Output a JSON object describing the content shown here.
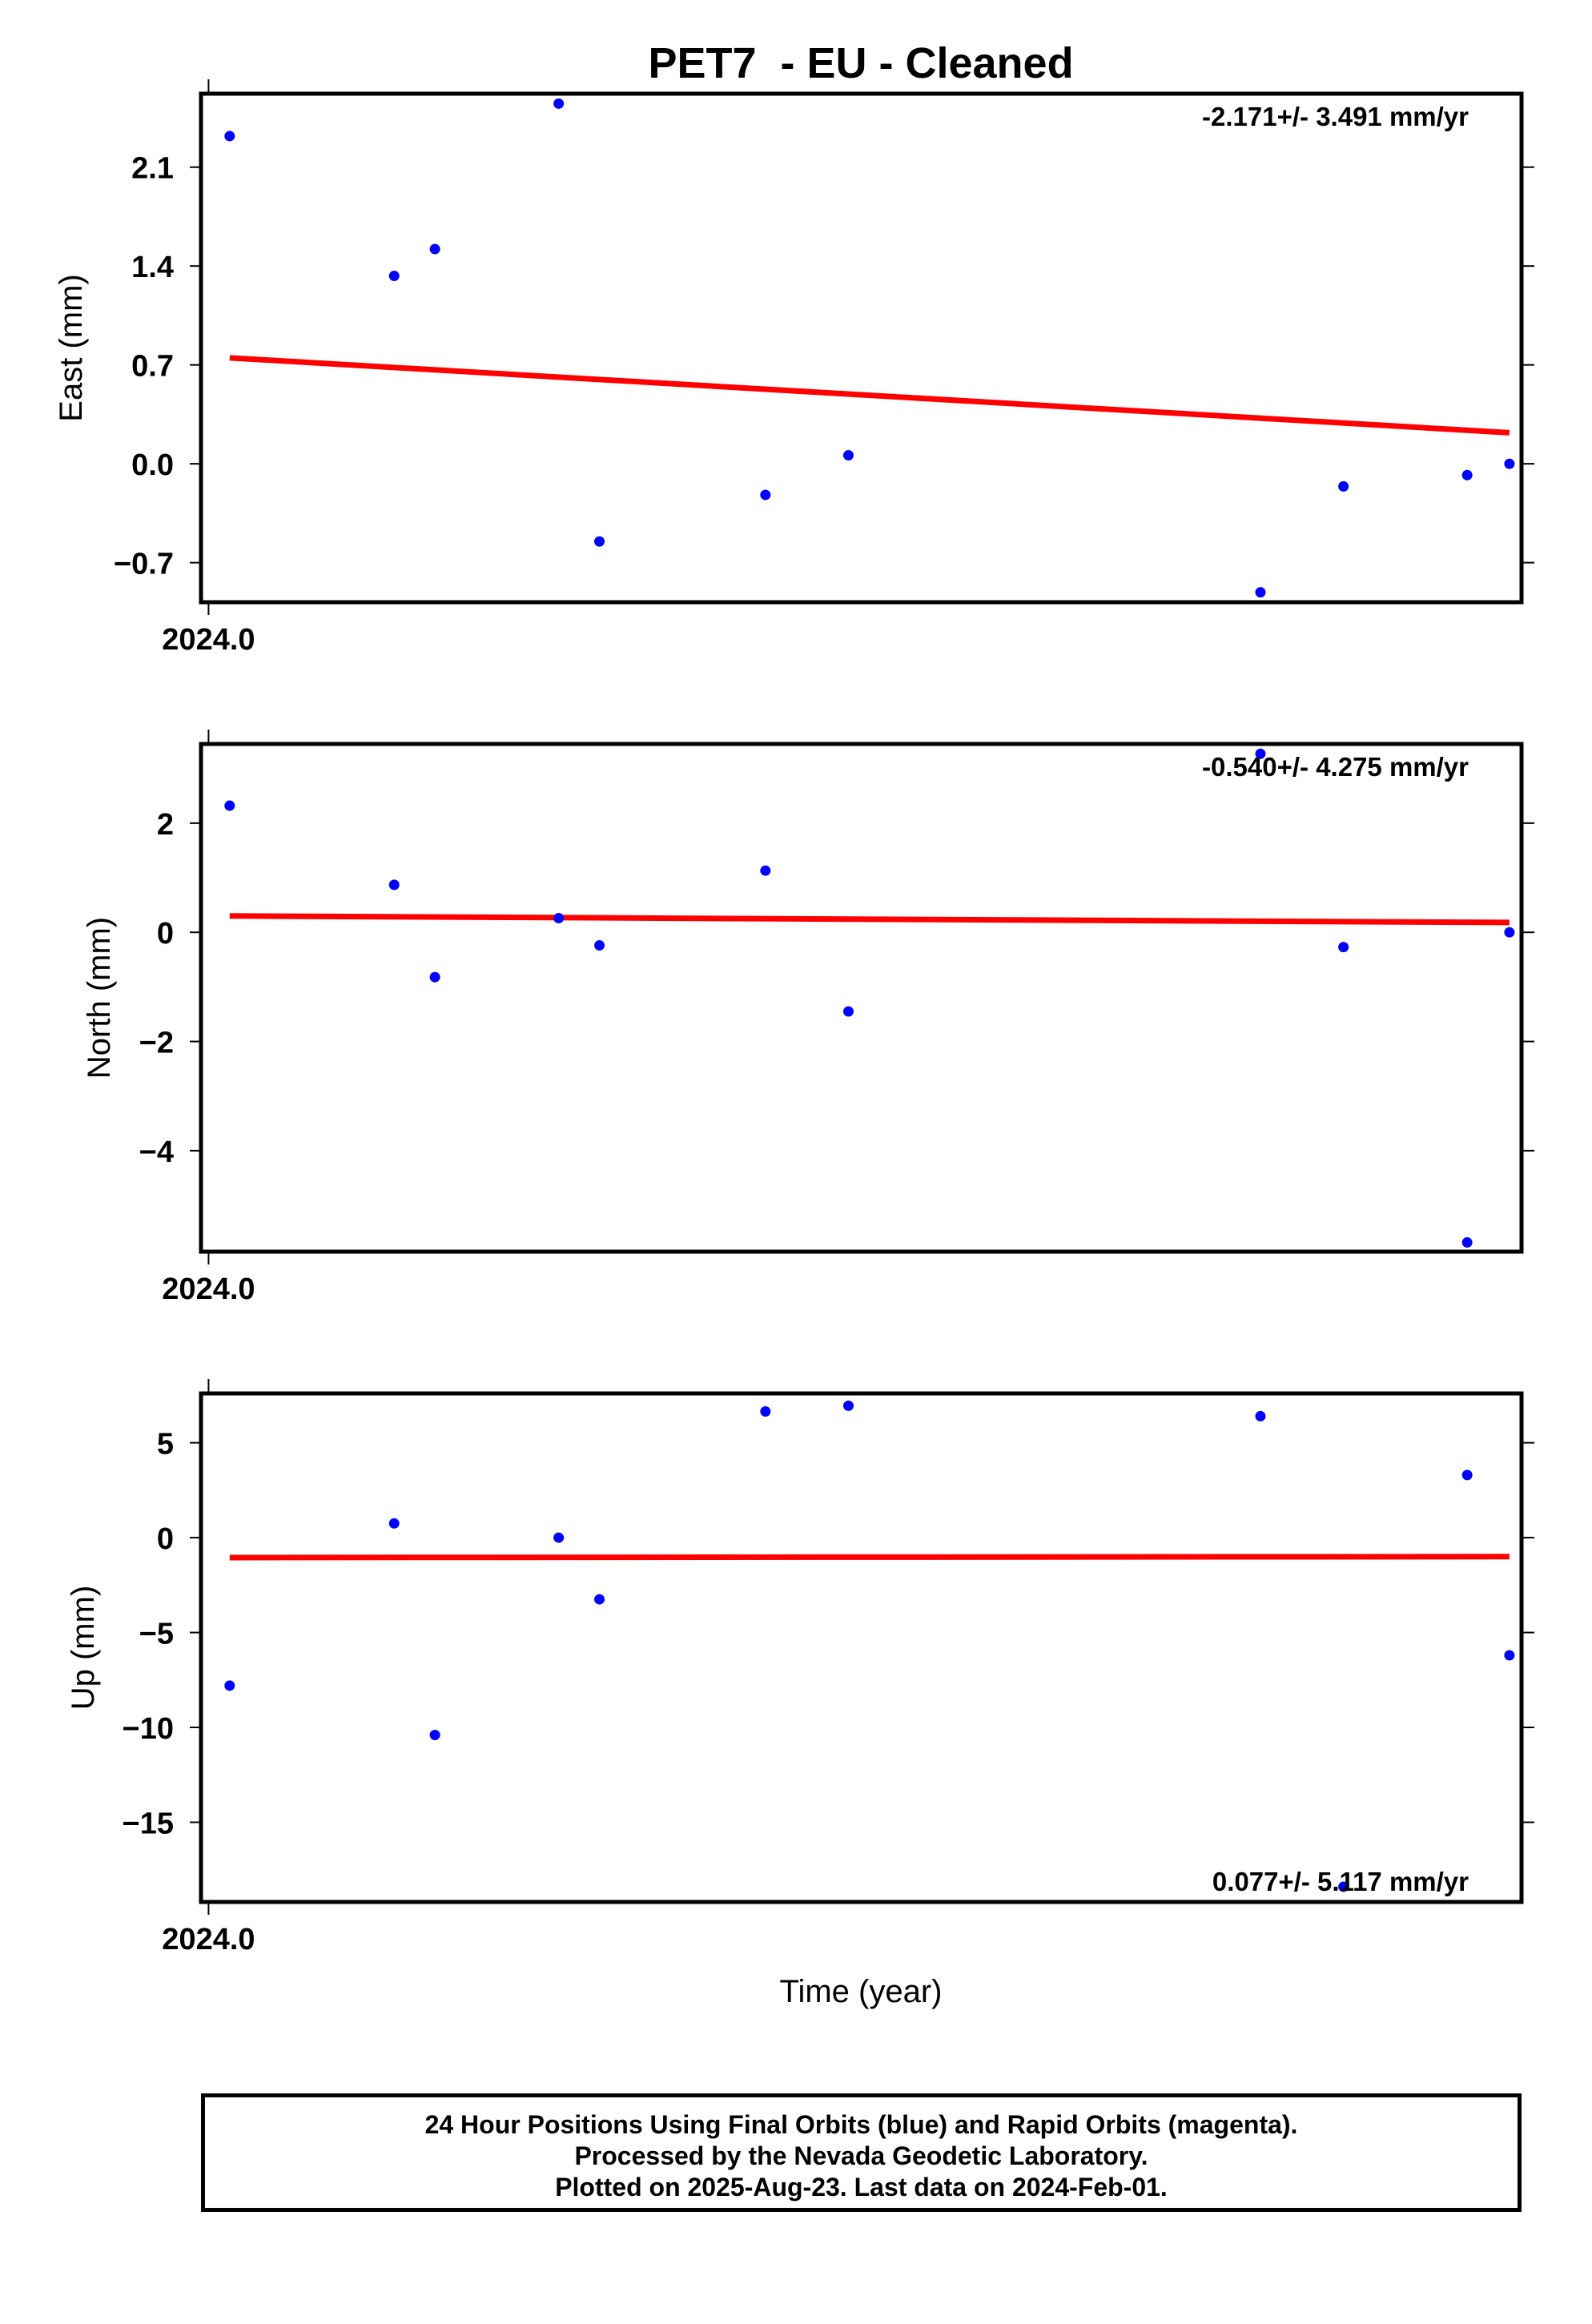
{
  "title": "PET7  - EU - Cleaned",
  "xlabel": "Time (year)",
  "footer": [
    "24 Hour Positions Using Final Orbits (blue) and Rapid Orbits (magenta).",
    "Processed by the Nevada Geodetic Laboratory.",
    "Plotted on 2025-Aug-23. Last data on 2024-Feb-01."
  ],
  "colors": {
    "points": "#0000ff",
    "trend": "#ff0000",
    "frame": "#000000"
  },
  "chart_data": [
    {
      "type": "scatter",
      "ylabel": "East (mm)",
      "rate": "-2.171+/- 3.491 mm/yr",
      "xlim": [
        2023.9995,
        2024.087
      ],
      "ylim": [
        -0.98,
        2.62
      ],
      "yticks": [
        {
          "value": 2.1,
          "label": "2.1"
        },
        {
          "value": 1.4,
          "label": "1.4"
        },
        {
          "value": 0.7,
          "label": "0.7"
        },
        {
          "value": 0.0,
          "label": "0.0"
        },
        {
          "value": -0.7,
          "label": "−0.7"
        }
      ],
      "xticks": [
        {
          "value": 2024.0,
          "label": "2024.0"
        }
      ],
      "points": [
        [
          2024.0014,
          2.32
        ],
        [
          2024.0123,
          1.33
        ],
        [
          2024.015,
          1.52
        ],
        [
          2024.0232,
          2.55
        ],
        [
          2024.0259,
          -0.55
        ],
        [
          2024.0369,
          -0.22
        ],
        [
          2024.0424,
          0.06
        ],
        [
          2024.0697,
          -0.91
        ],
        [
          2024.0752,
          -0.16
        ],
        [
          2024.0834,
          -0.08
        ],
        [
          2024.0862,
          0.0
        ]
      ],
      "trend": [
        [
          2024.0014,
          0.75
        ],
        [
          2024.0862,
          0.22
        ]
      ]
    },
    {
      "type": "scatter",
      "ylabel": "North (mm)",
      "rate": "-0.540+/- 4.275 mm/yr",
      "xlim": [
        2023.9995,
        2024.087
      ],
      "ylim": [
        -5.85,
        3.45
      ],
      "yticks": [
        {
          "value": 2,
          "label": "2"
        },
        {
          "value": 0,
          "label": "0"
        },
        {
          "value": -2,
          "label": "−2"
        },
        {
          "value": -4,
          "label": "−4"
        }
      ],
      "xticks": [
        {
          "value": 2024.0,
          "label": "2024.0"
        }
      ],
      "points": [
        [
          2024.0014,
          2.32
        ],
        [
          2024.0123,
          0.87
        ],
        [
          2024.015,
          -0.82
        ],
        [
          2024.0232,
          0.26
        ],
        [
          2024.0259,
          -0.24
        ],
        [
          2024.0369,
          1.13
        ],
        [
          2024.0424,
          -1.45
        ],
        [
          2024.0697,
          3.27
        ],
        [
          2024.0752,
          -0.27
        ],
        [
          2024.0834,
          -5.68
        ],
        [
          2024.0862,
          0.0
        ]
      ],
      "trend": [
        [
          2024.0014,
          0.3
        ],
        [
          2024.0862,
          0.18
        ]
      ]
    },
    {
      "type": "scatter",
      "ylabel": "Up (mm)",
      "rate": "0.077+/- 5.117 mm/yr",
      "xlim": [
        2023.9995,
        2024.087
      ],
      "ylim": [
        -19.2,
        7.6
      ],
      "yticks": [
        {
          "value": 5,
          "label": "5"
        },
        {
          "value": 0,
          "label": "0"
        },
        {
          "value": -5,
          "label": "−5"
        },
        {
          "value": -10,
          "label": "−10"
        },
        {
          "value": -15,
          "label": "−15"
        }
      ],
      "xticks": [
        {
          "value": 2024.0,
          "label": "2024.0"
        }
      ],
      "points": [
        [
          2024.0014,
          -7.8
        ],
        [
          2024.0123,
          0.75
        ],
        [
          2024.015,
          -10.4
        ],
        [
          2024.0232,
          0.0
        ],
        [
          2024.0259,
          -3.25
        ],
        [
          2024.0369,
          6.65
        ],
        [
          2024.0424,
          6.95
        ],
        [
          2024.0697,
          6.4
        ],
        [
          2024.0752,
          -18.4
        ],
        [
          2024.0834,
          3.3
        ],
        [
          2024.0862,
          -6.2
        ]
      ],
      "trend": [
        [
          2024.0014,
          -1.05
        ],
        [
          2024.0862,
          -1.0
        ]
      ]
    }
  ]
}
